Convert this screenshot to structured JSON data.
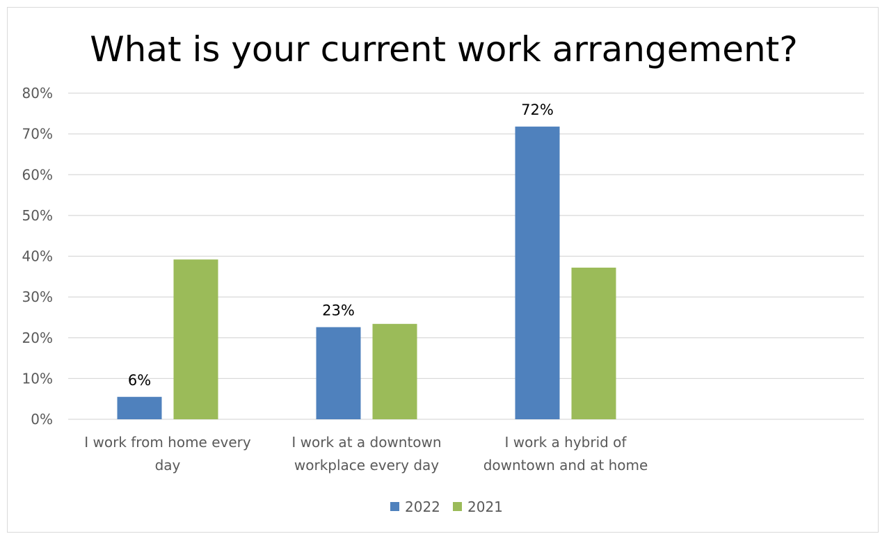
{
  "chart_data": {
    "type": "bar",
    "title": "What is your current work arrangement?",
    "categories": [
      [
        "I work from home every",
        "day"
      ],
      [
        "I work at a downtown",
        "workplace every day"
      ],
      [
        "I work a hybrid of",
        "downtown and at home"
      ],
      []
    ],
    "series": [
      {
        "name": "2022",
        "color": "#4f81bd",
        "values": [
          5.5,
          22.6,
          71.8,
          null
        ],
        "labels": [
          "6%",
          "23%",
          "72%",
          null
        ]
      },
      {
        "name": "2021",
        "color": "#9bbb59",
        "values": [
          39.2,
          23.4,
          37.2,
          null
        ],
        "labels": [
          null,
          null,
          null,
          null
        ]
      }
    ],
    "ylim": [
      0,
      80
    ],
    "yticks": [
      "0%",
      "10%",
      "20%",
      "30%",
      "40%",
      "50%",
      "60%",
      "70%",
      "80%"
    ],
    "grid": true,
    "legend_position": "bottom"
  }
}
